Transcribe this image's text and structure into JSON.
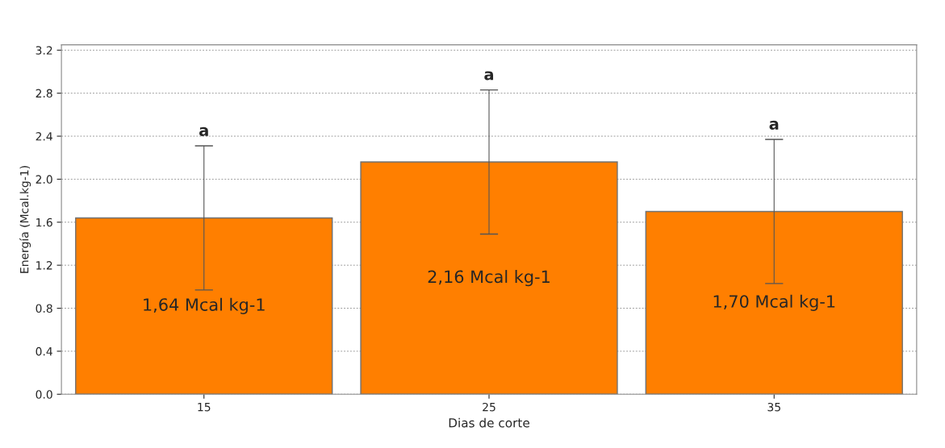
{
  "chart_data": {
    "type": "bar",
    "xlabel": "Dias de corte",
    "ylabel": "Energía (Mcal.kg-1)",
    "categories": [
      "15",
      "25",
      "35"
    ],
    "values": [
      1.64,
      2.16,
      1.7
    ],
    "color": "#ff7f00",
    "errors": [
      0.67,
      0.67,
      0.67
    ],
    "value_labels": [
      "1,64 Mcal kg-1",
      "2,16 Mcal kg-1",
      "1,70 Mcal kg-1"
    ],
    "annotations": [
      {
        "text": "a",
        "x": "15",
        "y": 2.31
      },
      {
        "text": "a",
        "x": "25",
        "y": 2.83
      },
      {
        "text": "a",
        "x": "35",
        "y": 2.37
      }
    ],
    "ylim": [
      0,
      3.25
    ],
    "yticks": [
      {
        "value": 0,
        "label": "0.0"
      },
      {
        "value": 0.4,
        "label": "0.4"
      },
      {
        "value": 0.8,
        "label": "0.8"
      },
      {
        "value": 1.2,
        "label": "1.2"
      },
      {
        "value": 1.6,
        "label": "1.6"
      },
      {
        "value": 2.0,
        "label": "2.0"
      },
      {
        "value": 2.4,
        "label": "2.4"
      },
      {
        "value": 2.8,
        "label": "2.8"
      },
      {
        "value": 3.2,
        "label": "3.2"
      }
    ],
    "grid": "y"
  }
}
